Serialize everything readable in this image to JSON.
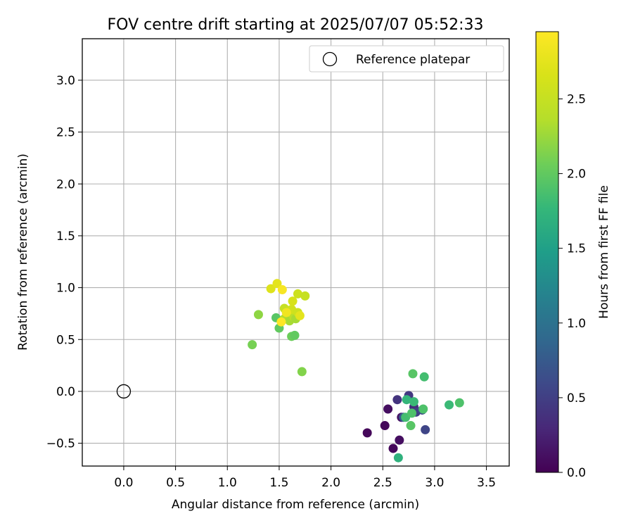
{
  "chart_data": {
    "type": "scatter",
    "title": "FOV centre drift starting at 2025/07/07 05:52:33",
    "xlabel": "Angular distance from reference (arcmin)",
    "ylabel": "Rotation from reference (arcmin)",
    "xlim": [
      -0.4,
      3.72
    ],
    "ylim": [
      -0.72,
      3.4
    ],
    "xticks": [
      0.0,
      0.5,
      1.0,
      1.5,
      2.0,
      2.5,
      3.0,
      3.5
    ],
    "xtick_labels": [
      "0.0",
      "0.5",
      "1.0",
      "1.5",
      "2.0",
      "2.5",
      "3.0",
      "3.5"
    ],
    "yticks": [
      -0.5,
      0.0,
      0.5,
      1.0,
      1.5,
      2.0,
      2.5,
      3.0
    ],
    "ytick_labels": [
      "−0.5",
      "0.0",
      "0.5",
      "1.0",
      "1.5",
      "2.0",
      "2.5",
      "3.0"
    ],
    "grid": true,
    "legend": {
      "position": "top-right",
      "entries": [
        "Reference platepar"
      ]
    },
    "reference_point": {
      "x": 0.0,
      "y": 0.0,
      "label": "Reference platepar"
    },
    "colorbar": {
      "label": "Hours from first FF file",
      "colormap": "viridis",
      "range": [
        0.0,
        2.95
      ],
      "ticks": [
        0.0,
        0.5,
        1.0,
        1.5,
        2.0,
        2.5
      ],
      "tick_labels": [
        "0.0",
        "0.5",
        "1.0",
        "1.5",
        "2.0",
        "2.5"
      ]
    },
    "points": [
      {
        "x": 2.35,
        "y": -0.4,
        "c": 0.05
      },
      {
        "x": 2.52,
        "y": -0.33,
        "c": 0.05
      },
      {
        "x": 2.55,
        "y": -0.17,
        "c": 0.1
      },
      {
        "x": 2.6,
        "y": -0.55,
        "c": 0.05
      },
      {
        "x": 2.66,
        "y": -0.47,
        "c": 0.1
      },
      {
        "x": 2.68,
        "y": -0.25,
        "c": 0.15
      },
      {
        "x": 2.64,
        "y": -0.08,
        "c": 0.4
      },
      {
        "x": 2.75,
        "y": -0.04,
        "c": 0.45
      },
      {
        "x": 2.8,
        "y": -0.15,
        "c": 0.35
      },
      {
        "x": 2.82,
        "y": -0.2,
        "c": 0.5
      },
      {
        "x": 2.88,
        "y": -0.18,
        "c": 0.6
      },
      {
        "x": 2.91,
        "y": -0.37,
        "c": 0.55
      },
      {
        "x": 2.7,
        "y": -0.25,
        "c": 0.75
      },
      {
        "x": 2.65,
        "y": -0.64,
        "c": 1.7
      },
      {
        "x": 2.72,
        "y": -0.25,
        "c": 1.85
      },
      {
        "x": 2.73,
        "y": -0.08,
        "c": 1.75
      },
      {
        "x": 2.77,
        "y": -0.33,
        "c": 1.95
      },
      {
        "x": 2.78,
        "y": -0.21,
        "c": 1.9
      },
      {
        "x": 2.8,
        "y": -0.1,
        "c": 1.8
      },
      {
        "x": 2.89,
        "y": -0.17,
        "c": 1.9
      },
      {
        "x": 2.79,
        "y": 0.17,
        "c": 1.95
      },
      {
        "x": 2.9,
        "y": 0.14,
        "c": 1.85
      },
      {
        "x": 3.14,
        "y": -0.13,
        "c": 1.8
      },
      {
        "x": 3.24,
        "y": -0.11,
        "c": 1.9
      },
      {
        "x": 1.24,
        "y": 0.45,
        "c": 2.1
      },
      {
        "x": 1.3,
        "y": 0.74,
        "c": 2.2
      },
      {
        "x": 1.72,
        "y": 0.19,
        "c": 2.15
      },
      {
        "x": 1.5,
        "y": 0.61,
        "c": 2.0
      },
      {
        "x": 1.47,
        "y": 0.71,
        "c": 1.95
      },
      {
        "x": 1.62,
        "y": 0.53,
        "c": 2.05
      },
      {
        "x": 1.65,
        "y": 0.54,
        "c": 2.0
      },
      {
        "x": 1.55,
        "y": 0.7,
        "c": 2.35
      },
      {
        "x": 1.6,
        "y": 0.68,
        "c": 2.3
      },
      {
        "x": 1.64,
        "y": 0.72,
        "c": 2.4
      },
      {
        "x": 1.66,
        "y": 0.7,
        "c": 2.3
      },
      {
        "x": 1.55,
        "y": 0.8,
        "c": 2.5
      },
      {
        "x": 1.62,
        "y": 0.79,
        "c": 2.6
      },
      {
        "x": 1.68,
        "y": 0.76,
        "c": 2.55
      },
      {
        "x": 1.63,
        "y": 0.87,
        "c": 2.65
      },
      {
        "x": 1.7,
        "y": 0.73,
        "c": 2.75
      },
      {
        "x": 1.68,
        "y": 0.94,
        "c": 2.55
      },
      {
        "x": 1.75,
        "y": 0.92,
        "c": 2.5
      },
      {
        "x": 1.42,
        "y": 0.99,
        "c": 2.7
      },
      {
        "x": 1.48,
        "y": 1.04,
        "c": 2.75
      },
      {
        "x": 1.53,
        "y": 0.98,
        "c": 2.9
      },
      {
        "x": 1.52,
        "y": 0.67,
        "c": 2.95
      },
      {
        "x": 1.57,
        "y": 0.76,
        "c": 2.85
      }
    ]
  }
}
